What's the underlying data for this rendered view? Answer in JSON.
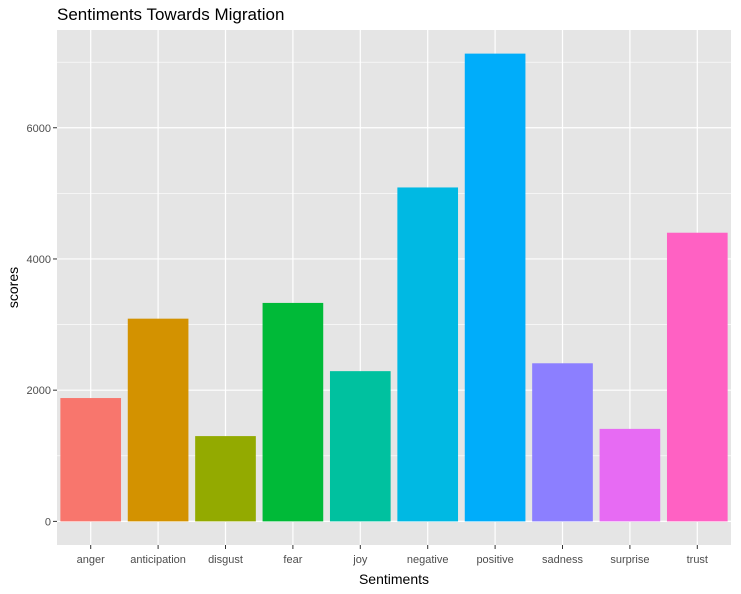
{
  "chart_data": {
    "type": "bar",
    "title": "Sentiments Towards Migration",
    "xlabel": "Sentiments",
    "ylabel": "scores",
    "categories": [
      "anger",
      "anticipation",
      "disgust",
      "fear",
      "joy",
      "negative",
      "positive",
      "sadness",
      "surprise",
      "trust"
    ],
    "values": [
      1880,
      3090,
      1300,
      3330,
      2290,
      5090,
      7130,
      2410,
      1410,
      4400
    ],
    "colors": [
      "#F8766D",
      "#D39200",
      "#93AA00",
      "#00BA38",
      "#00C19F",
      "#00B9E3",
      "#00ADFA",
      "#8C7FFF",
      "#E76BF3",
      "#FF61C3"
    ],
    "ylim": [
      -360,
      7490
    ],
    "yticks": [
      0,
      2000,
      4000,
      6000
    ],
    "ytick_labels": [
      "0",
      "2000",
      "4000",
      "6000"
    ],
    "grid": true,
    "legend": "none",
    "panel_background": "#E5E5E5",
    "grid_color": "#FFFFFF"
  }
}
